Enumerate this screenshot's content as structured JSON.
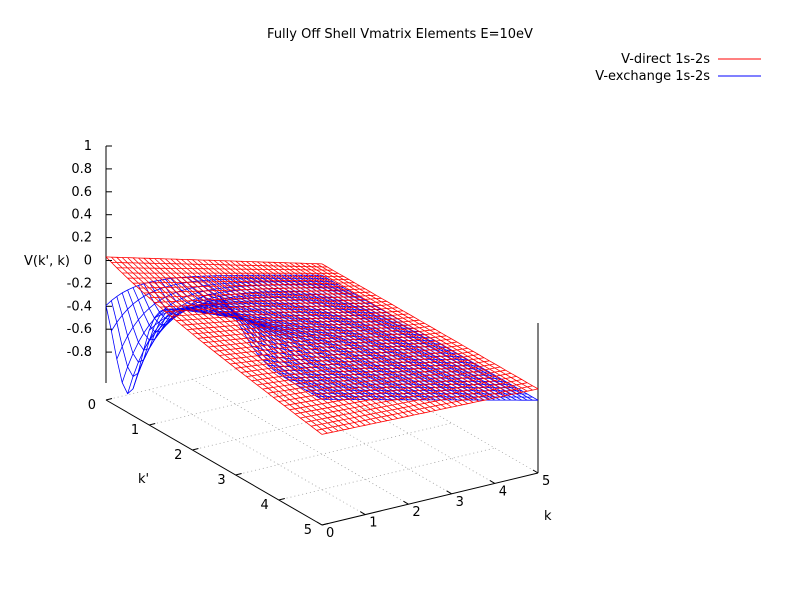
{
  "chart_data": {
    "type": "surface",
    "title": "Fully Off Shell Vmatrix Elements E=10eV",
    "xlabel": "k",
    "ylabel": "k'",
    "zlabel": "V(k', k)",
    "xlim": [
      0,
      5
    ],
    "ylim": [
      0,
      5
    ],
    "zlim": [
      -1,
      1
    ],
    "x_ticks": [
      "0",
      "1",
      "2",
      "3",
      "4",
      "5"
    ],
    "y_ticks": [
      "0",
      "1",
      "2",
      "3",
      "4",
      "5"
    ],
    "z_ticks": [
      "-0.8",
      "-0.6",
      "-0.4",
      "-0.2",
      "0",
      "0.2",
      "0.4",
      "0.6",
      "0.8",
      "1"
    ],
    "grid": true,
    "legend_position": "top-right",
    "series": [
      {
        "name": "V-direct 1s-2s",
        "color": "#ff0000",
        "description_points": [
          {
            "k": 0,
            "kp": 0,
            "v": 0.0
          },
          {
            "k": 5,
            "kp": 0,
            "v": -0.35
          },
          {
            "k": 0,
            "kp": 5,
            "v": -0.3
          },
          {
            "k": 5,
            "kp": 5,
            "v": -0.35
          }
        ]
      },
      {
        "name": "V-exchange 1s-2s",
        "color": "#0000ff",
        "description_points": [
          {
            "k": 0,
            "kp": 0,
            "v": -0.2
          },
          {
            "k": 0,
            "kp": 0.5,
            "v": -0.85
          },
          {
            "k": 0,
            "kp": 2.5,
            "v": -0.05
          },
          {
            "k": 5,
            "kp": 0,
            "v": -0.42
          }
        ]
      }
    ]
  }
}
